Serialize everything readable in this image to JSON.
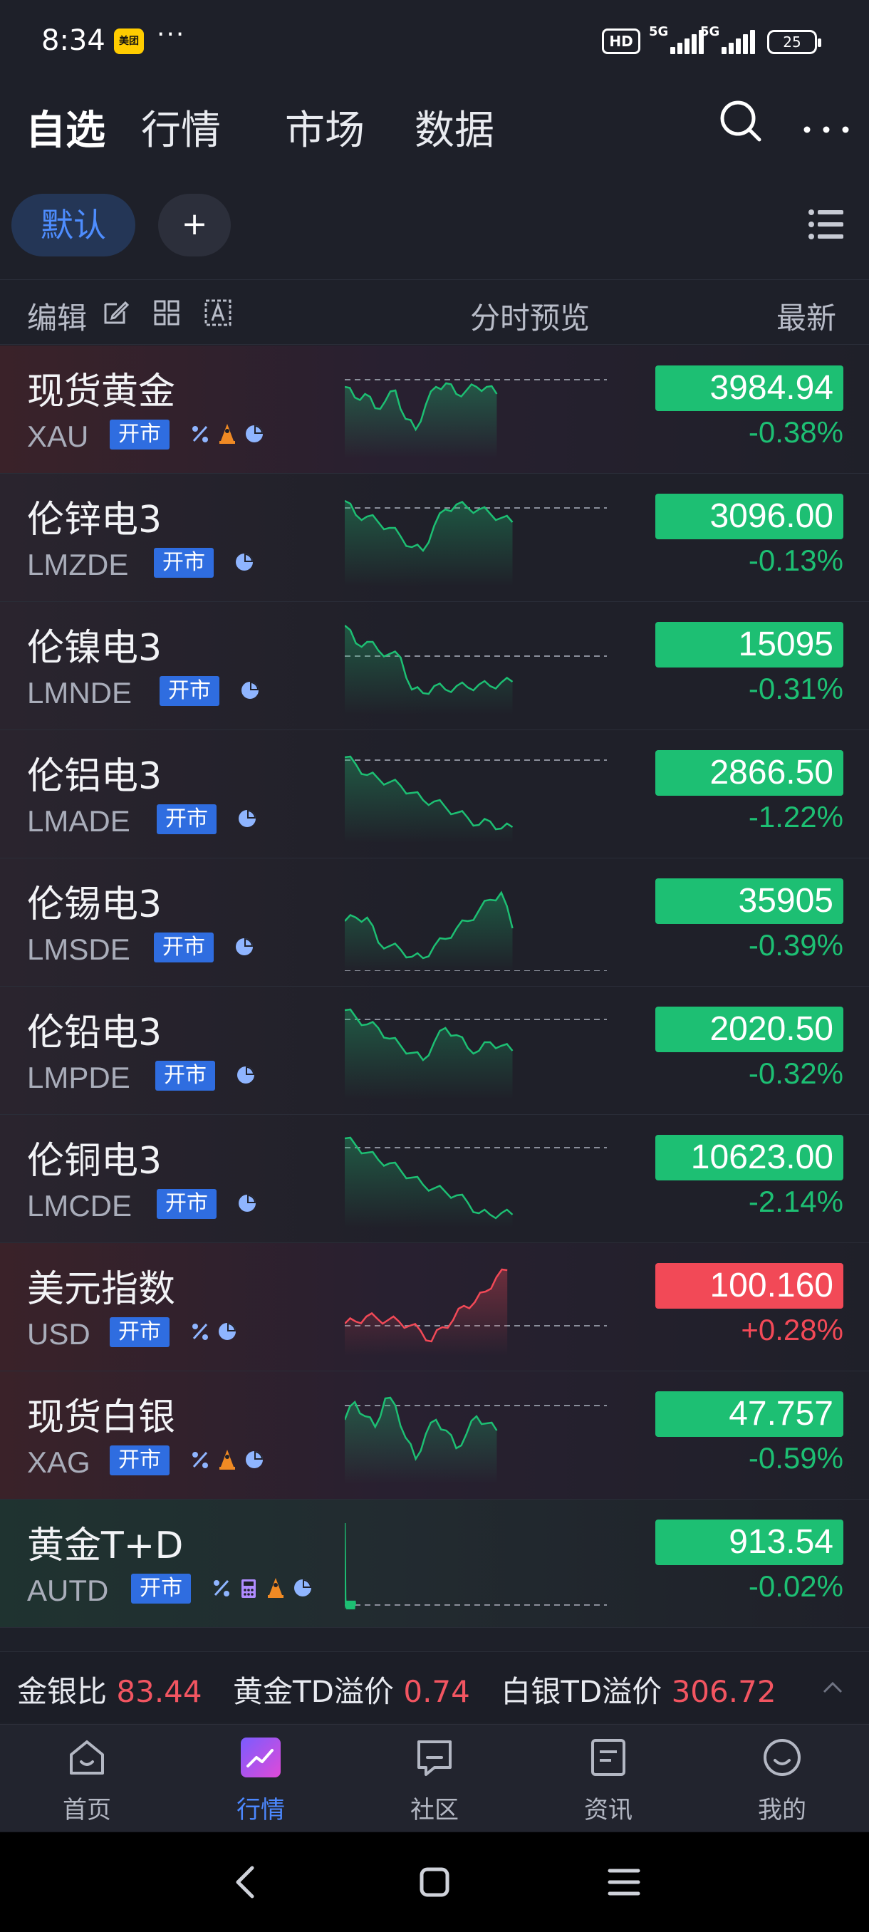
{
  "status_bar": {
    "time": "8:34",
    "app_badge": "美团",
    "more": "···",
    "hd": "HD",
    "net1": "5G",
    "net2": "5G",
    "battery": "25"
  },
  "top_nav": {
    "tabs": [
      "自选",
      "行情",
      "市场",
      "数据"
    ],
    "active": "自选"
  },
  "group_bar": {
    "active_group": "默认",
    "add": "+"
  },
  "column_header": {
    "edit": "编辑",
    "preview": "分时预览",
    "latest": "最新"
  },
  "colors": {
    "up": "#f24957",
    "down": "#1dbf73",
    "accent": "#4c88ff",
    "badge": "#2f6de0"
  },
  "rows": [
    {
      "name": "现货黄金",
      "code": "XAU",
      "status": "开市",
      "icons": [
        "percent-icon",
        "bell-icon",
        "pie-icon"
      ],
      "price": "3984.94",
      "change": "-0.38%",
      "dir": "down"
    },
    {
      "name": "伦锌电3",
      "code": "LMZDE",
      "status": "开市",
      "icons": [
        "pie-icon"
      ],
      "price": "3096.00",
      "change": "-0.13%",
      "dir": "down"
    },
    {
      "name": "伦镍电3",
      "code": "LMNDE",
      "status": "开市",
      "icons": [
        "pie-icon"
      ],
      "price": "15095",
      "change": "-0.31%",
      "dir": "down"
    },
    {
      "name": "伦铝电3",
      "code": "LMADE",
      "status": "开市",
      "icons": [
        "pie-icon"
      ],
      "price": "2866.50",
      "change": "-1.22%",
      "dir": "down"
    },
    {
      "name": "伦锡电3",
      "code": "LMSDE",
      "status": "开市",
      "icons": [
        "pie-icon"
      ],
      "price": "35905",
      "change": "-0.39%",
      "dir": "down"
    },
    {
      "name": "伦铅电3",
      "code": "LMPDE",
      "status": "开市",
      "icons": [
        "pie-icon"
      ],
      "price": "2020.50",
      "change": "-0.32%",
      "dir": "down"
    },
    {
      "name": "伦铜电3",
      "code": "LMCDE",
      "status": "开市",
      "icons": [
        "pie-icon"
      ],
      "price": "10623.00",
      "change": "-2.14%",
      "dir": "down"
    },
    {
      "name": "美元指数",
      "code": "USD",
      "status": "开市",
      "icons": [
        "percent-icon",
        "pie-icon"
      ],
      "price": "100.160",
      "change": "+0.28%",
      "dir": "up"
    },
    {
      "name": "现货白银",
      "code": "XAG",
      "status": "开市",
      "icons": [
        "percent-icon",
        "bell-icon",
        "pie-icon"
      ],
      "price": "47.757",
      "change": "-0.59%",
      "dir": "down"
    },
    {
      "name": "黄金T+D",
      "code": "AUTD",
      "status": "开市",
      "icons": [
        "percent-icon",
        "calc-icon",
        "bell-icon",
        "pie-icon"
      ],
      "price": "913.54",
      "change": "-0.02%",
      "dir": "down"
    }
  ],
  "ratio_bar": {
    "items": [
      {
        "label": "金银比",
        "value": "83.44"
      },
      {
        "label": "黄金TD溢价",
        "value": "0.74"
      },
      {
        "label": "白银TD溢价",
        "value": "306.72"
      }
    ]
  },
  "tab_bar": {
    "items": [
      "首页",
      "行情",
      "社区",
      "资讯",
      "我的"
    ],
    "active": "行情"
  }
}
